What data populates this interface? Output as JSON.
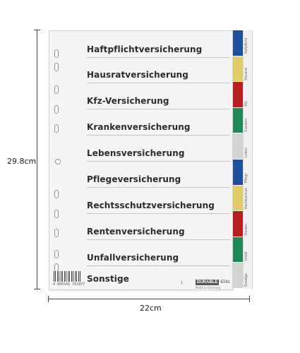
{
  "dimensions": {
    "height_label": "29.8cm",
    "width_label": "22cm"
  },
  "divider": {
    "rows": [
      "Haftpflichtversicherung",
      "Hausratversicherung",
      "Kfz-Versicherung",
      "Krankenversicherung",
      "Lebensversicherung",
      "Pflegeversicherung",
      "Rechtsschutzversicherung",
      "Rentenversicherung",
      "Unfallversicherung",
      "Sonstige"
    ],
    "tabs": [
      {
        "label": "Haftpflicht",
        "color": "#1f4f9c"
      },
      {
        "label": "Hausrat",
        "color": "#e3cd6b"
      },
      {
        "label": "Kfz",
        "color": "#b51f22"
      },
      {
        "label": "Kranken",
        "color": "#1f8a55"
      },
      {
        "label": "Leben",
        "color": "#d2d4d2"
      },
      {
        "label": "Pflege",
        "color": "#1f4f9c"
      },
      {
        "label": "Rechtsschutz",
        "color": "#e3cd6b"
      },
      {
        "label": "Renten",
        "color": "#b51f22"
      },
      {
        "label": "Unfall",
        "color": "#1f8a55"
      },
      {
        "label": "Sonstige",
        "color": "#d2d4d2"
      }
    ],
    "barcode_number": "4 005546 761877",
    "small_mark": "1",
    "brand": {
      "name": "DURABLE",
      "code": "6741",
      "made_in": "Made in Germany"
    }
  }
}
